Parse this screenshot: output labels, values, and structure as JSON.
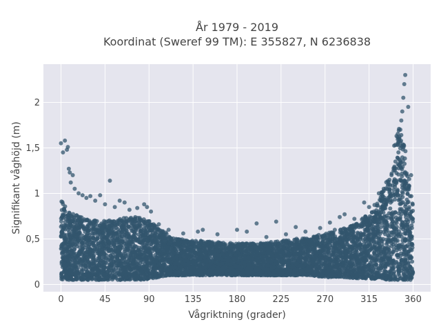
{
  "chart_data": {
    "type": "scatter",
    "title_line1": "År 1979 - 2019",
    "title_line2": "Koordinat (Sweref 99 TM): E 355827, N 6236838",
    "xlabel": "Vågriktning (grader)",
    "ylabel": "Signifikant våghöjd (m)",
    "xlim": [
      -18,
      378
    ],
    "ylim": [
      -0.08,
      2.42
    ],
    "xticks": [
      0,
      45,
      90,
      135,
      180,
      225,
      270,
      315,
      360
    ],
    "xtick_labels": [
      "0",
      "45",
      "90",
      "135",
      "180",
      "225",
      "270",
      "315",
      "360"
    ],
    "yticks": [
      0,
      0.5,
      1,
      1.5,
      2
    ],
    "ytick_labels": [
      "0",
      "0,5",
      "1",
      "1,5",
      "2"
    ],
    "grid": true,
    "marker_color": "#33566e",
    "background": "#e5e5ee",
    "envelope": {
      "x": [
        0,
        5,
        10,
        20,
        30,
        45,
        60,
        70,
        80,
        90,
        100,
        110,
        120,
        135,
        150,
        165,
        180,
        195,
        210,
        225,
        240,
        255,
        270,
        285,
        300,
        315,
        325,
        335,
        340,
        345,
        350,
        355,
        360
      ],
      "y_upper": [
        0.95,
        0.85,
        0.78,
        0.75,
        0.72,
        0.7,
        0.72,
        0.74,
        0.74,
        0.7,
        0.62,
        0.55,
        0.5,
        0.48,
        0.48,
        0.46,
        0.45,
        0.45,
        0.46,
        0.48,
        0.5,
        0.52,
        0.56,
        0.6,
        0.66,
        0.78,
        0.95,
        1.2,
        1.5,
        1.75,
        1.6,
        1.3,
        0.85
      ],
      "y_lower": [
        0.05,
        0.05,
        0.05,
        0.05,
        0.05,
        0.05,
        0.05,
        0.05,
        0.05,
        0.06,
        0.08,
        0.1,
        0.1,
        0.1,
        0.1,
        0.1,
        0.1,
        0.1,
        0.1,
        0.1,
        0.1,
        0.1,
        0.08,
        0.08,
        0.07,
        0.06,
        0.06,
        0.05,
        0.05,
        0.05,
        0.05,
        0.05,
        0.05
      ]
    },
    "outliers": {
      "x": [
        0,
        2,
        4,
        6,
        7,
        8,
        9,
        10,
        12,
        14,
        18,
        22,
        26,
        30,
        35,
        40,
        45,
        50,
        55,
        60,
        65,
        70,
        78,
        85,
        88,
        92,
        100,
        110,
        125,
        140,
        145,
        160,
        180,
        190,
        200,
        210,
        220,
        230,
        240,
        250,
        265,
        275,
        280,
        285,
        290,
        300,
        310,
        315,
        320,
        325,
        330,
        335,
        338,
        340,
        342,
        345,
        346,
        347,
        348,
        349,
        350,
        351,
        352,
        355,
        358
      ],
      "y": [
        1.55,
        1.45,
        1.58,
        1.48,
        1.51,
        1.27,
        1.23,
        1.12,
        1.2,
        1.05,
        1.0,
        0.98,
        0.95,
        0.97,
        0.92,
        0.98,
        0.88,
        1.14,
        0.85,
        0.92,
        0.9,
        0.82,
        0.84,
        0.88,
        0.85,
        0.8,
        0.66,
        0.6,
        0.56,
        0.58,
        0.6,
        0.55,
        0.6,
        0.58,
        0.67,
        0.52,
        0.69,
        0.55,
        0.63,
        0.58,
        0.62,
        0.68,
        0.6,
        0.74,
        0.77,
        0.72,
        0.9,
        0.85,
        0.8,
        1.0,
        1.05,
        1.1,
        1.2,
        1.25,
        1.35,
        1.45,
        1.6,
        1.7,
        1.8,
        1.9,
        2.05,
        2.2,
        2.3,
        1.95,
        1.2
      ]
    }
  }
}
